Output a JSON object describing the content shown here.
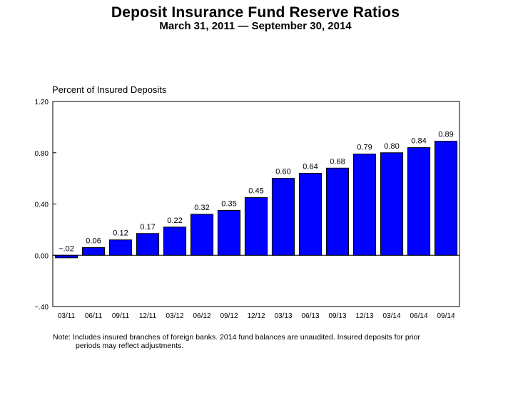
{
  "header": {
    "title": "Deposit Insurance Fund Reserve Ratios",
    "subtitle": "March 31, 2011 — September 30, 2014"
  },
  "chart_data": {
    "type": "bar",
    "ylabel": "Percent of Insured Deposits",
    "categories": [
      "03/11",
      "06/11",
      "09/11",
      "12/11",
      "03/12",
      "06/12",
      "09/12",
      "12/12",
      "03/13",
      "06/13",
      "09/13",
      "12/13",
      "03/14",
      "06/14",
      "09/14"
    ],
    "values": [
      -0.02,
      0.06,
      0.12,
      0.17,
      0.22,
      0.32,
      0.35,
      0.45,
      0.6,
      0.64,
      0.68,
      0.79,
      0.8,
      0.84,
      0.89
    ],
    "data_labels": [
      "−.02",
      "0.06",
      "0.12",
      "0.17",
      "0.22",
      "0.32",
      "0.35",
      "0.45",
      "0.60",
      "0.64",
      "0.68",
      "0.79",
      "0.80",
      "0.84",
      "0.89"
    ],
    "ylim": [
      -0.4,
      1.2
    ],
    "yticks": [
      -0.4,
      0.0,
      0.4,
      0.8,
      1.2
    ],
    "ytick_labels": [
      "−.40",
      "0.00",
      "0.40",
      "0.80",
      "1.20"
    ],
    "bar_color": "#0000ff",
    "grid": false
  },
  "note": {
    "line1": "Note: Includes insured branches of foreign banks. 2014 fund balances are unaudited. Insured deposits for prior",
    "line2": "periods may reflect adjustments."
  }
}
